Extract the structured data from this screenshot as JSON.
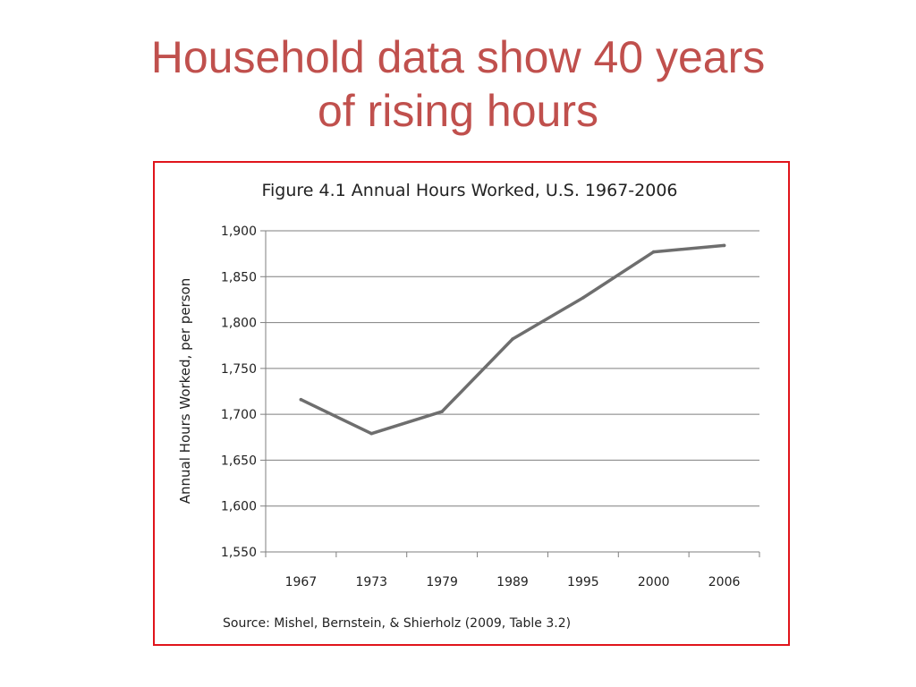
{
  "slide": {
    "title_line1": "Household data show 40 years",
    "title_line2": "of rising hours"
  },
  "colors": {
    "title": "#C0504D",
    "frame": "#E0141B",
    "line": "#6E6E6E",
    "grid": "#7F7F7F"
  },
  "chart_data": {
    "type": "line",
    "title": "Figure 4.1  Annual Hours Worked, U.S. 1967-2006",
    "xlabel": "",
    "ylabel": "Annual Hours Worked,  per person",
    "categories": [
      "1967",
      "1973",
      "1979",
      "1989",
      "1995",
      "2000",
      "2006"
    ],
    "series": [
      {
        "values": [
          1716,
          1679,
          1703,
          1782,
          1827,
          1877,
          1884
        ]
      }
    ],
    "ylim": [
      1550,
      1900
    ],
    "yticks": [
      1550,
      1600,
      1650,
      1700,
      1750,
      1800,
      1850,
      1900
    ],
    "ytick_labels": [
      "1,550",
      "1,600",
      "1,650",
      "1,700",
      "1,750",
      "1,800",
      "1,850",
      "1,900"
    ],
    "grid": true,
    "legend": "none",
    "source": "Source: Mishel, Bernstein, & Shierholz (2009, Table 3.2)"
  }
}
